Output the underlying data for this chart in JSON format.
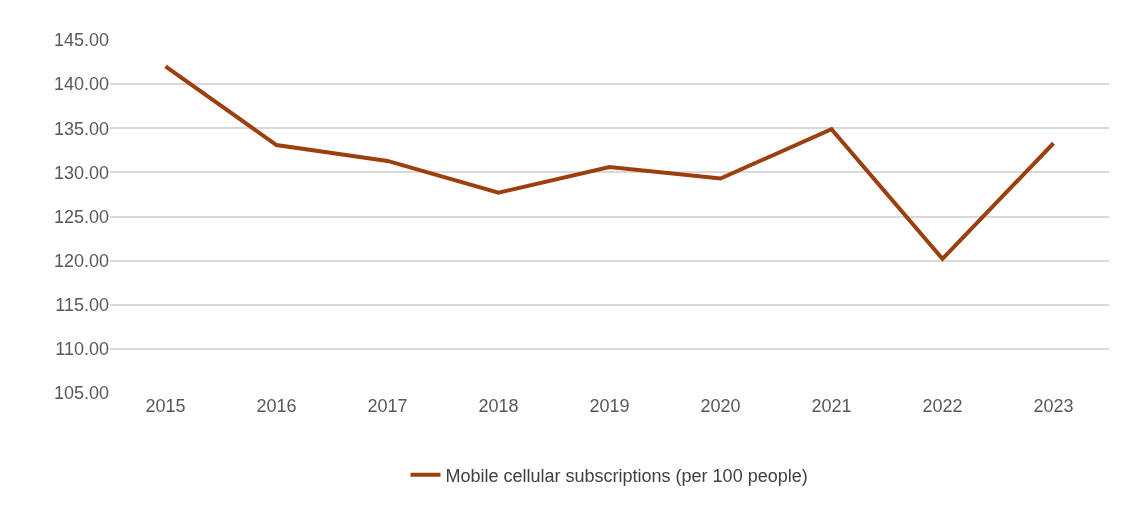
{
  "chart_data": {
    "type": "line",
    "categories": [
      "2015",
      "2016",
      "2017",
      "2018",
      "2019",
      "2020",
      "2021",
      "2022",
      "2023"
    ],
    "series": [
      {
        "name": "Mobile cellular subscriptions (per 100 people)",
        "color": "#9c3f0f",
        "values": [
          142.0,
          133.1,
          131.3,
          127.7,
          130.6,
          129.3,
          134.9,
          120.2,
          133.3
        ]
      }
    ],
    "ylim": [
      105,
      145
    ],
    "yticks": [
      {
        "value": 105,
        "label": "105.00"
      },
      {
        "value": 110,
        "label": "110.00"
      },
      {
        "value": 115,
        "label": "115.00"
      },
      {
        "value": 120,
        "label": "120.00"
      },
      {
        "value": 125,
        "label": "125.00"
      },
      {
        "value": 130,
        "label": "130.00"
      },
      {
        "value": 135,
        "label": "135.00"
      },
      {
        "value": 140,
        "label": "140.00"
      },
      {
        "value": 145,
        "label": "145.00"
      }
    ],
    "grid": "y",
    "legend": "bottom",
    "marker": "none",
    "line_style": "solid"
  }
}
